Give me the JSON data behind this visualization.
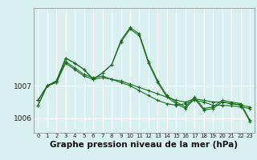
{
  "background_color": "#d8f0f0",
  "grid_color": "#ffffff",
  "line_color": "#1a6e1a",
  "marker": "+",
  "xlabel": "Graphe pression niveau de la mer (hPa)",
  "xlabel_fontsize": 7.5,
  "ytick_labels": [
    "1006",
    "1007"
  ],
  "ytick_values": [
    1006,
    1007
  ],
  "xticks": [
    0,
    1,
    2,
    3,
    4,
    5,
    6,
    7,
    8,
    9,
    10,
    11,
    12,
    13,
    14,
    15,
    16,
    17,
    18,
    19,
    20,
    21,
    22,
    23
  ],
  "ylim": [
    1005.55,
    1009.4
  ],
  "xlim": [
    -0.5,
    23.5
  ],
  "series": [
    [
      1006.55,
      1007.0,
      1007.1,
      1007.7,
      1007.5,
      1007.3,
      1007.2,
      1007.25,
      1007.2,
      1007.15,
      1007.05,
      1006.95,
      1006.85,
      1006.75,
      1006.65,
      1006.55,
      1006.5,
      1006.6,
      1006.55,
      1006.5,
      1006.5,
      1006.45,
      1006.4,
      1006.35
    ],
    [
      1006.55,
      1007.0,
      1007.1,
      1007.75,
      1007.55,
      1007.35,
      1007.25,
      1007.3,
      1007.2,
      1007.1,
      1007.0,
      1006.85,
      1006.7,
      1006.55,
      1006.45,
      1006.4,
      1006.45,
      1006.55,
      1006.5,
      1006.4,
      1006.4,
      1006.38,
      1006.35,
      1006.3
    ],
    [
      1006.4,
      1007.0,
      1007.15,
      1007.85,
      1007.7,
      1007.5,
      1007.2,
      1007.4,
      1007.65,
      1008.4,
      1008.8,
      1008.6,
      1007.75,
      1007.15,
      1006.7,
      1006.5,
      1006.35,
      1006.65,
      1006.3,
      1006.35,
      1006.55,
      1006.5,
      1006.45,
      1005.95
    ],
    [
      1006.4,
      1007.0,
      1007.15,
      1007.85,
      1007.7,
      1007.5,
      1007.2,
      1007.4,
      1007.65,
      1008.35,
      1008.75,
      1008.55,
      1007.7,
      1007.1,
      1006.65,
      1006.45,
      1006.3,
      1006.6,
      1006.25,
      1006.3,
      1006.5,
      1006.45,
      1006.42,
      1005.9
    ]
  ]
}
